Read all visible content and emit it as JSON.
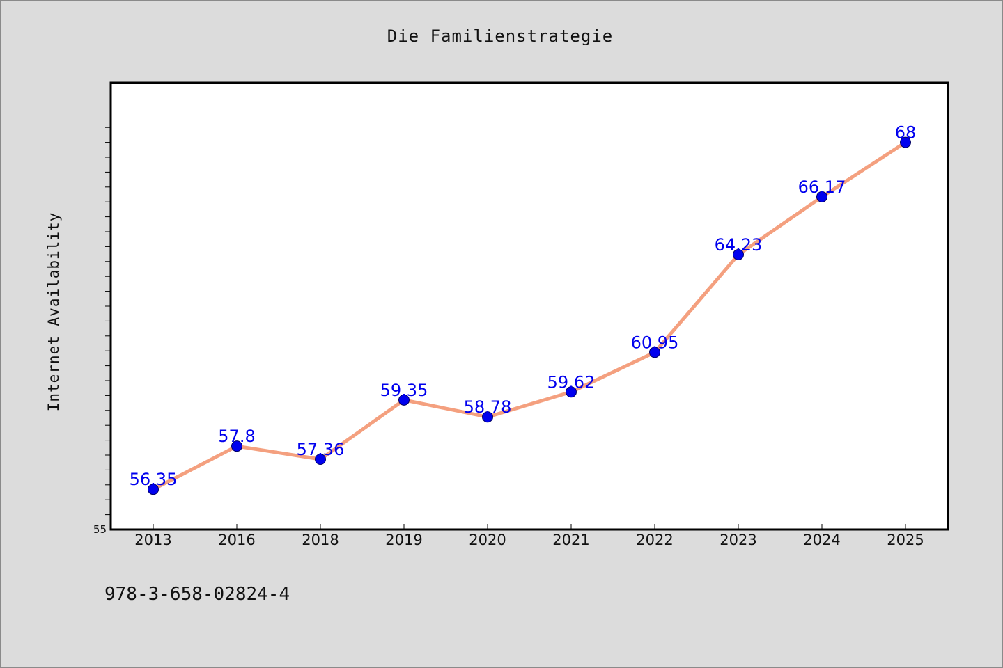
{
  "chart_data": {
    "type": "line",
    "title": "Die Familienstrategie",
    "xlabel": "",
    "ylabel": "Internet Availability",
    "categories": [
      "2013",
      "2016",
      "2018",
      "2019",
      "2020",
      "2021",
      "2022",
      "2023",
      "2024",
      "2025"
    ],
    "series": [
      {
        "values": [
          56.35,
          57.8,
          57.36,
          59.35,
          58.78,
          59.62,
          60.95,
          64.23,
          66.17,
          68
        ],
        "labels": [
          "56.35",
          "57.8",
          "57.36",
          "59.35",
          "58.78",
          "59.62",
          "60.95",
          "64.23",
          "66.17",
          "68"
        ]
      }
    ],
    "ylim": [
      55,
      70
    ],
    "ytick_label": "55",
    "grid": false,
    "legend": "none",
    "colors": {
      "background": "#dcdcdc",
      "plot_background": "#ffffff",
      "line": "#f4a07f",
      "marker": "#0000ee",
      "data_label": "#0000ee"
    }
  },
  "footer": {
    "isbn": "978-3-658-02824-4"
  }
}
